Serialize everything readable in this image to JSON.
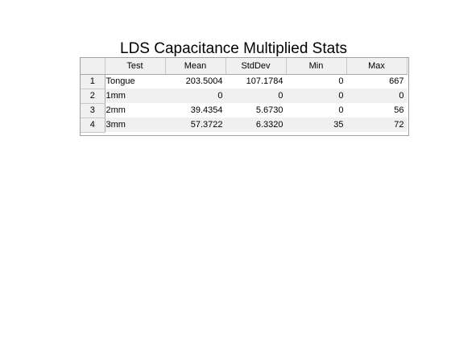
{
  "figure": {
    "title": "LDS Capacitance Multiplied Stats"
  },
  "table": {
    "columns": [
      "Test",
      "Mean",
      "StdDev",
      "Min",
      "Max"
    ],
    "rows": [
      {
        "index": "1",
        "test": "Tongue",
        "mean": "203.5004",
        "stddev": "107.1784",
        "min": "0",
        "max": "667"
      },
      {
        "index": "2",
        "test": "1mm",
        "mean": "0",
        "stddev": "0",
        "min": "0",
        "max": "0"
      },
      {
        "index": "3",
        "test": "2mm",
        "mean": "39.4354",
        "stddev": "5.6730",
        "min": "0",
        "max": "56"
      },
      {
        "index": "4",
        "test": "3mm",
        "mean": "57.3722",
        "stddev": "6.3320",
        "min": "35",
        "max": "72"
      }
    ]
  },
  "colors": {
    "header_background": "#f0f0f0",
    "alt_row_background": "#f0f0f0",
    "border": "#a0a0a0"
  }
}
